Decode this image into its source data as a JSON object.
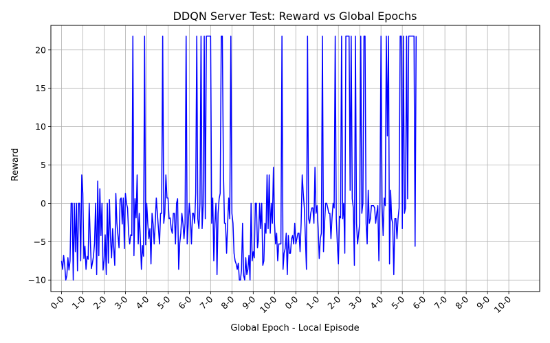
{
  "chart_data": {
    "type": "line",
    "title": "DDQN Server Test: Reward vs Global Epochs",
    "xlabel": "Global Epoch - Local Episode",
    "ylabel": "Reward",
    "grid": true,
    "legend": "none",
    "line_color": "#0000ff",
    "ylim": [
      -11.5,
      23.2
    ],
    "yticks": [
      -10,
      -5,
      0,
      5,
      10,
      15,
      20
    ],
    "xticks": [
      {
        "index": 0,
        "label": "0-0"
      },
      {
        "index": 20,
        "label": "1-0"
      },
      {
        "index": 40,
        "label": "2-0"
      },
      {
        "index": 60,
        "label": "3-0"
      },
      {
        "index": 80,
        "label": "4-0"
      },
      {
        "index": 100,
        "label": "5-0"
      },
      {
        "index": 120,
        "label": "6-0"
      },
      {
        "index": 140,
        "label": "7-0"
      },
      {
        "index": 160,
        "label": "8-0"
      },
      {
        "index": 180,
        "label": "9-0"
      },
      {
        "index": 200,
        "label": "10-0"
      },
      {
        "index": 220,
        "label": "0-0"
      },
      {
        "index": 240,
        "label": "1-0"
      },
      {
        "index": 260,
        "label": "2-0"
      },
      {
        "index": 280,
        "label": "3-0"
      },
      {
        "index": 300,
        "label": "4-0"
      },
      {
        "index": 320,
        "label": "5-0"
      },
      {
        "index": 340,
        "label": "6-0"
      },
      {
        "index": 360,
        "label": "7-0"
      },
      {
        "index": 380,
        "label": "8-0"
      },
      {
        "index": 400,
        "label": "9-0"
      },
      {
        "index": 420,
        "label": "10-0"
      }
    ],
    "xlim": [
      -10,
      449
    ],
    "series": [
      {
        "values": [
          -7.5,
          -8.6,
          -6.8,
          -8.1,
          -10.0,
          -9.4,
          -7.1,
          -8.7,
          -7.5,
          0.0,
          0.0,
          -10.0,
          0.0,
          -6.3,
          0.0,
          -8.8,
          0.0,
          0.0,
          -7.5,
          3.7,
          1.3,
          -7.2,
          -5.6,
          -8.6,
          -6.9,
          -7.3,
          0.0,
          -4.6,
          -8.5,
          -7.8,
          -6.9,
          -5.2,
          0.0,
          -9.3,
          2.9,
          -6.8,
          1.9,
          -4.2,
          0.0,
          -8.7,
          -7.5,
          -4.1,
          -9.3,
          0.0,
          -7.8,
          0.5,
          -4.6,
          -7.1,
          -3.3,
          -5.8,
          -8.1,
          1.3,
          -2.6,
          -4.2,
          -5.8,
          0.5,
          0.7,
          -2.7,
          0.7,
          -5.9,
          1.3,
          0.0,
          -0.6,
          -3.9,
          -5.3,
          -4.1,
          -4.2,
          21.8,
          -6.8,
          0.6,
          -1.9,
          3.7,
          -5.3,
          -1.3,
          -4.6,
          -8.6,
          -5.5,
          -6.9,
          21.8,
          -5.4,
          0.0,
          -2.6,
          -4.6,
          -3.3,
          -7.9,
          -1.3,
          -2.7,
          -5.3,
          -2.6,
          0.7,
          -1.3,
          -3.3,
          -5.3,
          -1.3,
          -1.3,
          21.8,
          -2.6,
          -1.3,
          3.7,
          0.7,
          0.7,
          -2.0,
          -1.9,
          -3.3,
          -3.9,
          -1.3,
          -1.3,
          -5.3,
          0.0,
          0.6,
          -8.6,
          -5.2,
          -3.9,
          -1.3,
          -2.6,
          -4.6,
          -2.6,
          21.8,
          -5.3,
          -2.6,
          0.0,
          -1.9,
          -5.3,
          -1.3,
          -1.3,
          -2.6,
          1.3,
          21.8,
          -2.0,
          -3.3,
          0.0,
          21.8,
          -3.3,
          -0.3,
          21.8,
          -2.0,
          21.8,
          21.8,
          21.8,
          21.8,
          21.8,
          -2.6,
          0.7,
          -7.5,
          -2.6,
          0.0,
          -9.3,
          -1.3,
          0.6,
          1.3,
          21.8,
          21.8,
          4.5,
          -2.6,
          -2.6,
          -6.5,
          -2.6,
          0.7,
          -2.0,
          21.8,
          -1.3,
          -2.6,
          -6.5,
          -7.5,
          -7.9,
          -8.6,
          -7.8,
          -10.0,
          -10.0,
          -8.7,
          -2.6,
          -9.4,
          -10.0,
          -7.1,
          -9.3,
          -8.6,
          -6.8,
          -10.0,
          0.0,
          -7.5,
          -6.3,
          -7.1,
          0.0,
          0.0,
          -5.8,
          -4.6,
          0.0,
          -3.3,
          0.0,
          -8.1,
          -7.5,
          -2.6,
          -3.9,
          3.7,
          -3.3,
          3.7,
          -3.9,
          0.0,
          -2.6,
          4.7,
          -2.6,
          -5.3,
          -3.9,
          -7.5,
          -5.3,
          -5.3,
          -5.3,
          21.8,
          -8.6,
          -6.5,
          -5.9,
          -3.9,
          -9.3,
          -4.2,
          -6.5,
          -6.5,
          -4.6,
          -4.2,
          -5.3,
          -2.6,
          -5.3,
          -4.6,
          -3.9,
          -3.9,
          -6.3,
          -2.6,
          3.7,
          1.3,
          -0.6,
          -4.6,
          -8.6,
          21.8,
          -2.0,
          -2.6,
          -1.3,
          -0.6,
          -0.6,
          -2.6,
          4.7,
          -1.3,
          -0.3,
          -3.3,
          -7.2,
          -4.6,
          -3.9,
          21.8,
          -6.3,
          -2.6,
          0.0,
          0.0,
          -0.6,
          -1.3,
          -1.3,
          -4.6,
          -1.9,
          0.0,
          -0.6,
          21.8,
          -2.0,
          -5.3,
          -7.9,
          -1.7,
          -1.9,
          21.8,
          -2.0,
          0.0,
          -6.5,
          21.8,
          21.8,
          21.8,
          21.8,
          1.7,
          21.8,
          0.6,
          -0.6,
          -8.1,
          21.8,
          -2.6,
          -5.3,
          -3.9,
          -2.6,
          21.8,
          -1.3,
          0.0,
          21.8,
          21.8,
          -2.6,
          -5.3,
          1.7,
          -2.6,
          -2.0,
          -0.3,
          -0.3,
          -0.3,
          -0.6,
          -2.6,
          -1.3,
          -0.3,
          -7.5,
          0.0,
          21.8,
          -0.3,
          -4.2,
          0.7,
          -0.3,
          21.8,
          8.8,
          21.8,
          -7.9,
          1.7,
          -2.0,
          -2.6,
          -9.3,
          -2.0,
          -2.0,
          -4.6,
          -2.0,
          -0.6,
          21.8,
          21.8,
          -3.3,
          21.8,
          -1.3,
          -0.6,
          21.8,
          0.6,
          21.8,
          21.8,
          21.8,
          21.8,
          21.8,
          21.8,
          -5.6,
          21.8
        ]
      }
    ]
  }
}
